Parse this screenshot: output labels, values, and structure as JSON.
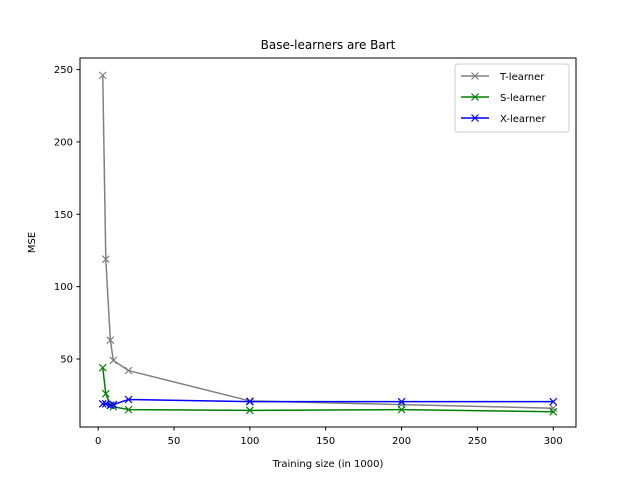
{
  "chart_data": {
    "type": "line",
    "title": "Base-learners are Bart",
    "xlabel": "Training size (in 1000)",
    "ylabel": "MSE",
    "xlim": [
      -12,
      315
    ],
    "ylim": [
      3,
      258
    ],
    "xticks": [
      0,
      50,
      100,
      150,
      200,
      250,
      300
    ],
    "yticks": [
      50,
      100,
      150,
      200,
      250
    ],
    "grid": false,
    "legend_position": "top-right",
    "series": [
      {
        "name": "T-learner",
        "color": "#808080",
        "marker": "x",
        "x": [
          3,
          5,
          8,
          10,
          20,
          100,
          200,
          300
        ],
        "y": [
          246,
          119,
          63,
          49,
          42,
          21,
          18.5,
          16
        ]
      },
      {
        "name": "S-learner",
        "color": "#008000",
        "marker": "x",
        "x": [
          3,
          5,
          8,
          10,
          20,
          100,
          200,
          300
        ],
        "y": [
          44,
          26,
          18,
          17,
          15,
          14.5,
          15,
          13.5
        ]
      },
      {
        "name": "X-learner",
        "color": "#0000ff",
        "marker": "x",
        "x": [
          3,
          5,
          8,
          10,
          20,
          100,
          200,
          300
        ],
        "y": [
          19,
          19,
          18,
          18.5,
          22,
          20.5,
          20.5,
          20.5
        ]
      }
    ]
  }
}
